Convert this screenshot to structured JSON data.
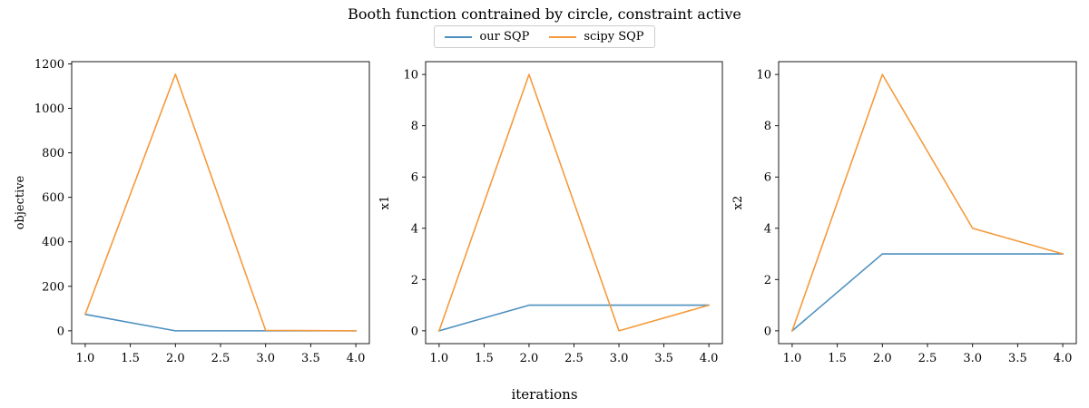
{
  "figure": {
    "title": "Booth function contrained by circle, constraint active",
    "xlabel": "iterations"
  },
  "legend": [
    {
      "name": "our SQP",
      "color": "#4c8fbf"
    },
    {
      "name": "scipy SQP",
      "color": "#f59a3c"
    }
  ],
  "chart_data": [
    {
      "type": "line",
      "ylabel": "objective",
      "xlim": [
        0.85,
        4.15
      ],
      "ylim": [
        -57.6,
        1210
      ],
      "xticks": [
        1.0,
        1.5,
        2.0,
        2.5,
        3.0,
        3.5,
        4.0
      ],
      "yticks": [
        0,
        200,
        400,
        600,
        800,
        1000,
        1200
      ],
      "x": [
        1.0,
        2.0,
        3.0,
        4.0
      ],
      "series": [
        {
          "name": "our SQP",
          "color": "#4c8fbf",
          "values": [
            74,
            0,
            0,
            0
          ]
        },
        {
          "name": "scipy SQP",
          "color": "#f59a3c",
          "values": [
            74,
            1154,
            2,
            0
          ]
        }
      ]
    },
    {
      "type": "line",
      "ylabel": "x1",
      "xlim": [
        0.85,
        4.15
      ],
      "ylim": [
        -0.5,
        10.5
      ],
      "xticks": [
        1.0,
        1.5,
        2.0,
        2.5,
        3.0,
        3.5,
        4.0
      ],
      "yticks": [
        0,
        2,
        4,
        6,
        8,
        10
      ],
      "x": [
        1.0,
        2.0,
        3.0,
        4.0
      ],
      "series": [
        {
          "name": "our SQP",
          "color": "#4c8fbf",
          "values": [
            0,
            1,
            1,
            1
          ]
        },
        {
          "name": "scipy SQP",
          "color": "#f59a3c",
          "values": [
            0,
            10,
            0,
            1
          ]
        }
      ]
    },
    {
      "type": "line",
      "ylabel": "x2",
      "xlim": [
        0.85,
        4.15
      ],
      "ylim": [
        -0.5,
        10.5
      ],
      "xticks": [
        1.0,
        1.5,
        2.0,
        2.5,
        3.0,
        3.5,
        4.0
      ],
      "yticks": [
        0,
        2,
        4,
        6,
        8,
        10
      ],
      "x": [
        1.0,
        2.0,
        3.0,
        4.0
      ],
      "series": [
        {
          "name": "our SQP",
          "color": "#4c8fbf",
          "values": [
            0,
            3,
            3,
            3
          ]
        },
        {
          "name": "scipy SQP",
          "color": "#f59a3c",
          "values": [
            0,
            10,
            4,
            3
          ]
        }
      ]
    }
  ]
}
